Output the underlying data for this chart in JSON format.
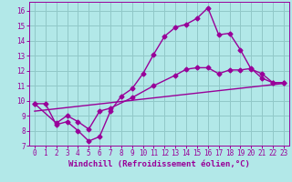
{
  "bg_color": "#b2e8e8",
  "grid_color": "#90c8c8",
  "line_color": "#990099",
  "marker": "D",
  "markersize": 2.5,
  "linewidth": 1.0,
  "xlabel": "Windchill (Refroidissement éolien,°C)",
  "xlabel_fontsize": 6.5,
  "tick_fontsize": 5.5,
  "xlim": [
    -0.5,
    23.5
  ],
  "ylim": [
    7,
    16.6
  ],
  "xticks": [
    0,
    1,
    2,
    3,
    4,
    5,
    6,
    7,
    8,
    9,
    10,
    11,
    12,
    13,
    14,
    15,
    16,
    17,
    18,
    19,
    20,
    21,
    22,
    23
  ],
  "yticks": [
    7,
    8,
    9,
    10,
    11,
    12,
    13,
    14,
    15,
    16
  ],
  "curve1_x": [
    0,
    1,
    2,
    3,
    4,
    5,
    6,
    7,
    8,
    9,
    10,
    11,
    12,
    13,
    14,
    15,
    16,
    17,
    18,
    19,
    20,
    21,
    22,
    23
  ],
  "curve1_y": [
    9.8,
    9.8,
    8.4,
    8.6,
    8.0,
    7.3,
    7.6,
    9.3,
    10.3,
    10.8,
    11.8,
    13.1,
    14.3,
    14.9,
    15.1,
    15.5,
    16.2,
    14.4,
    14.5,
    13.4,
    12.1,
    11.8,
    11.2,
    11.2
  ],
  "curve2_x": [
    0,
    2,
    3,
    4,
    5,
    6,
    7,
    9,
    11,
    13,
    14,
    15,
    16,
    17,
    18,
    19,
    20,
    21,
    22,
    23
  ],
  "curve2_y": [
    9.8,
    8.5,
    9.0,
    8.6,
    8.1,
    9.3,
    9.5,
    10.2,
    11.0,
    11.7,
    12.1,
    12.2,
    12.2,
    11.8,
    12.05,
    12.05,
    12.15,
    11.5,
    11.2,
    11.2
  ],
  "curve3_x": [
    0,
    23
  ],
  "curve3_y": [
    9.3,
    11.15
  ]
}
